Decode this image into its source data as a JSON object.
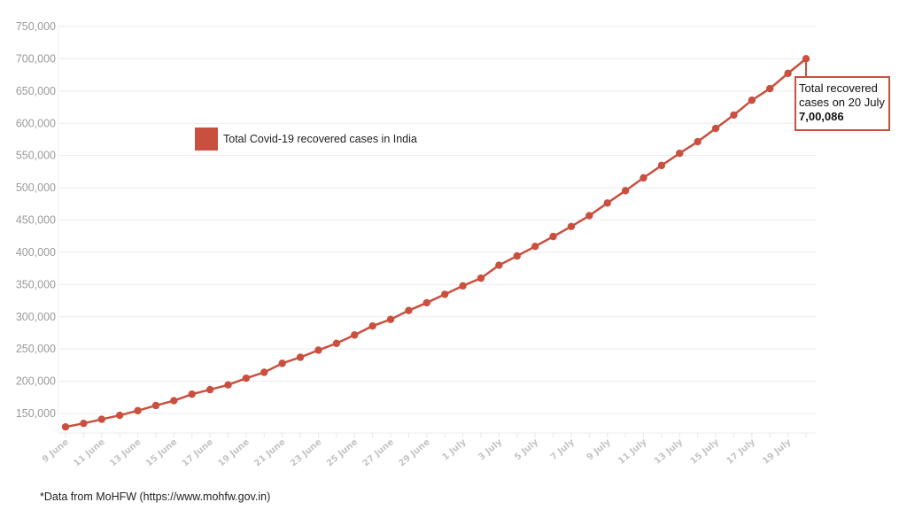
{
  "chart_data": {
    "type": "line",
    "title": "",
    "xlabel": "",
    "ylabel": "",
    "ylim": [
      120000,
      750000
    ],
    "y_ticks": [
      "150,000",
      "200,000",
      "250,000",
      "300,000",
      "350,000",
      "400,000",
      "450,000",
      "500,000",
      "550,000",
      "600,000",
      "650,000",
      "700,000",
      "750,000"
    ],
    "x_tick_labels": [
      "9 June",
      "11 June",
      "13 June",
      "15 June",
      "17 June",
      "19 June",
      "21 June",
      "23 June",
      "25 June",
      "27 June",
      "29 June",
      "1 July",
      "3 July",
      "5 July",
      "7 July",
      "9 July",
      "11 July",
      "13 July",
      "15 July",
      "17 July",
      "19 July"
    ],
    "grid": true,
    "legend_position": "upper-left-inside",
    "categories": [
      "9 June",
      "10 June",
      "11 June",
      "12 June",
      "13 June",
      "14 June",
      "15 June",
      "16 June",
      "17 June",
      "18 June",
      "19 June",
      "20 June",
      "21 June",
      "22 June",
      "23 June",
      "24 June",
      "25 June",
      "26 June",
      "27 June",
      "28 June",
      "29 June",
      "30 June",
      "1 July",
      "2 July",
      "3 July",
      "4 July",
      "5 July",
      "6 July",
      "7 July",
      "8 July",
      "9 July",
      "10 July",
      "11 July",
      "12 July",
      "13 July",
      "14 July",
      "15 July",
      "16 July",
      "17 July",
      "18 July",
      "19 July",
      "20 July"
    ],
    "series": [
      {
        "name": "Total Covid-19 recovered cases in India",
        "color": "#c9503e",
        "values": [
          129215,
          134670,
          141029,
          147195,
          154330,
          162379,
          169798,
          180013,
          186935,
          194325,
          204711,
          213831,
          227756,
          237196,
          248190,
          258685,
          271697,
          285637,
          295881,
          309713,
          321723,
          334822,
          347912,
          359860,
          379892,
          394227,
          409083,
          424433,
          439948,
          456831,
          476378,
          495513,
          515386,
          534621,
          553471,
          571460,
          592032,
          612815,
          635757,
          653751,
          677423,
          700086
        ]
      }
    ]
  },
  "legend": {
    "label": "Total Covid-19 recovered cases in India",
    "color": "#c9503e"
  },
  "annotation": {
    "line1": "Total recovered",
    "line2": "cases on 20 July",
    "value": "7,00,086"
  },
  "source_note": "*Data from MoHFW (https://www.mohfw.gov.in)"
}
